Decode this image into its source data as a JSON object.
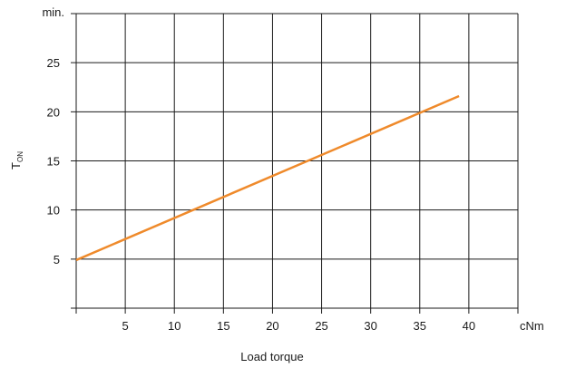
{
  "chart_data": {
    "type": "line",
    "xlabel": "Load torque",
    "ylabel": "T",
    "ylabel_subscript": "ON",
    "x_unit": "cNm",
    "y_unit": "min.",
    "xlim": [
      0,
      45
    ],
    "ylim": [
      0,
      30
    ],
    "x_ticks": [
      5,
      10,
      15,
      20,
      25,
      30,
      35,
      40
    ],
    "y_ticks": [
      5,
      10,
      15,
      20,
      25
    ],
    "grid": true,
    "series": [
      {
        "x": [
          0,
          39
        ],
        "y": [
          4.9,
          21.6
        ],
        "color": "#ef8a2b"
      }
    ]
  }
}
